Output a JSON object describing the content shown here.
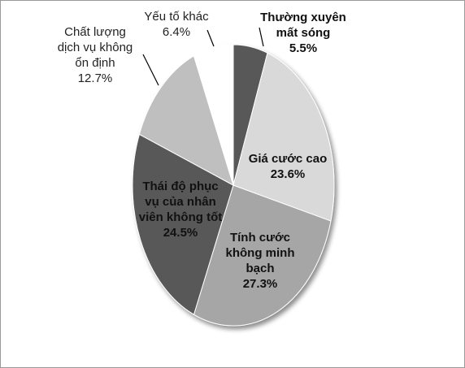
{
  "chart_data": {
    "type": "pie",
    "title": "",
    "start_angle_deg": 0,
    "direction": "clockwise",
    "slices": [
      {
        "label_lines": [
          "Thường xuyên",
          "mất sóng"
        ],
        "value": 5.5,
        "value_label": "5.5%",
        "color": "#595959"
      },
      {
        "label_lines": [
          "Giá cước cao"
        ],
        "value": 23.6,
        "value_label": "23.6%",
        "color": "#d9d9d9"
      },
      {
        "label_lines": [
          "Tính cước",
          "không minh",
          "bạch"
        ],
        "value": 27.3,
        "value_label": "27.3%",
        "color": "#a6a6a6"
      },
      {
        "label_lines": [
          "Thái độ phục",
          "vụ của nhân",
          "viên không tốt"
        ],
        "value": 24.5,
        "value_label": "24.5%",
        "color": "#595959"
      },
      {
        "label_lines": [
          "Chất lượng",
          "dịch vụ không",
          "ổn định"
        ],
        "value": 12.7,
        "value_label": "12.7%",
        "color": "#bfbfbf"
      },
      {
        "label_lines": [
          "Yếu tố khác"
        ],
        "value": 6.4,
        "value_label": "6.4%",
        "color": "#ffffff"
      }
    ]
  }
}
